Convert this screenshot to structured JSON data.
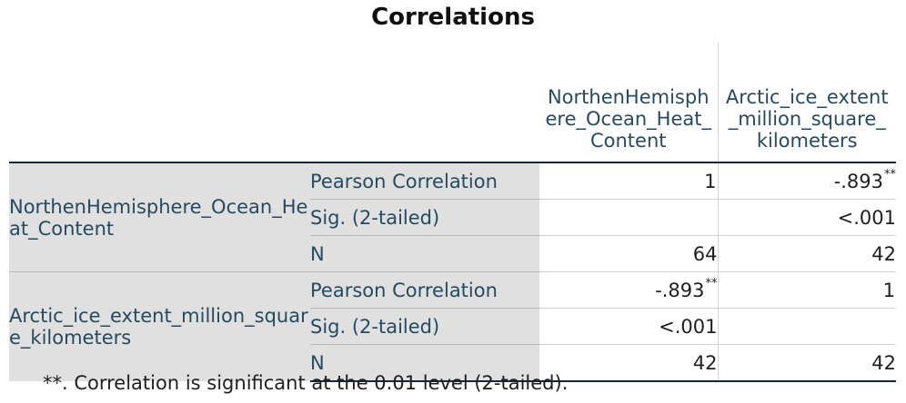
{
  "title": "Correlations",
  "columns": [
    "NorthenHemisphere_Ocean_Heat_Content",
    "Arctic_ice_extent_million_square_kilometers"
  ],
  "rows": [
    {
      "variable": "NorthenHemisphere_Ocean_Heat_Content",
      "stats": [
        {
          "label": "Pearson Correlation",
          "values": [
            "1",
            "-.893"
          ],
          "marks": [
            "",
            "**"
          ]
        },
        {
          "label": "Sig. (2-tailed)",
          "values": [
            "",
            "<.001"
          ],
          "marks": [
            "",
            ""
          ]
        },
        {
          "label": "N",
          "values": [
            "64",
            "42"
          ],
          "marks": [
            "",
            ""
          ]
        }
      ]
    },
    {
      "variable": "Arctic_ice_extent_million_square_kilometers",
      "stats": [
        {
          "label": "Pearson Correlation",
          "values": [
            "-.893",
            "1"
          ],
          "marks": [
            "**",
            ""
          ]
        },
        {
          "label": "Sig. (2-tailed)",
          "values": [
            "<.001",
            ""
          ],
          "marks": [
            "",
            ""
          ]
        },
        {
          "label": "N",
          "values": [
            "42",
            "42"
          ],
          "marks": [
            "",
            ""
          ]
        }
      ]
    }
  ],
  "footnote": "**. Correlation is significant at the 0.01 level (2-tailed)."
}
